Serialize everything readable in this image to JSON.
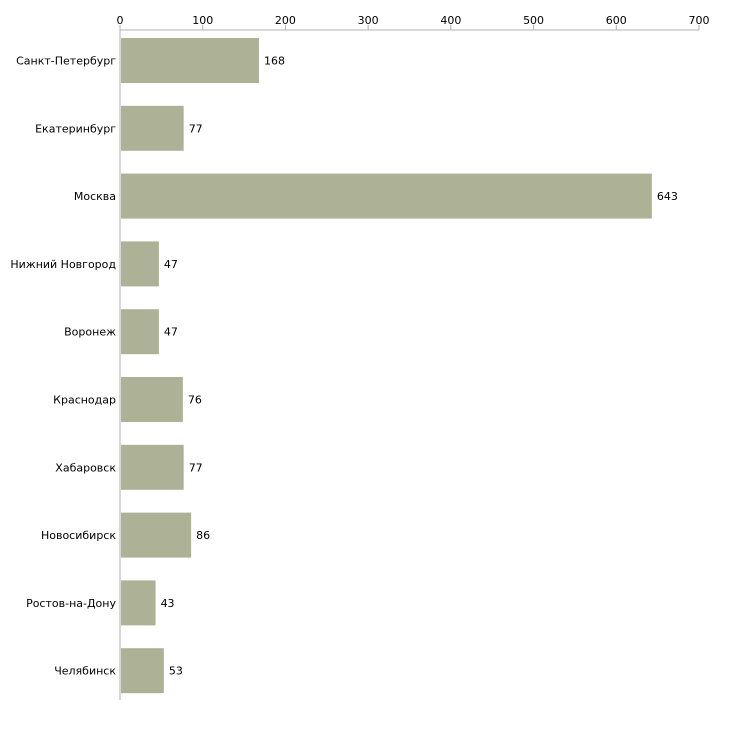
{
  "chart_data": {
    "type": "bar",
    "orientation": "horizontal",
    "title": "",
    "xlabel": "",
    "ylabel": "",
    "xlim": [
      0,
      700
    ],
    "xticks": [
      0,
      100,
      200,
      300,
      400,
      500,
      600,
      700
    ],
    "grid": false,
    "categories": [
      "Санкт-Петербург",
      "Екатеринбург",
      "Москва",
      "Нижний Новгород",
      "Воронеж",
      "Краснодар",
      "Хабаровск",
      "Новосибирск",
      "Ростов-на-Дону",
      "Челябинск"
    ],
    "values": [
      168,
      77,
      643,
      47,
      47,
      76,
      77,
      86,
      43,
      53
    ],
    "bar_color": "#adb297",
    "axis_color": "#b0b0b0"
  }
}
